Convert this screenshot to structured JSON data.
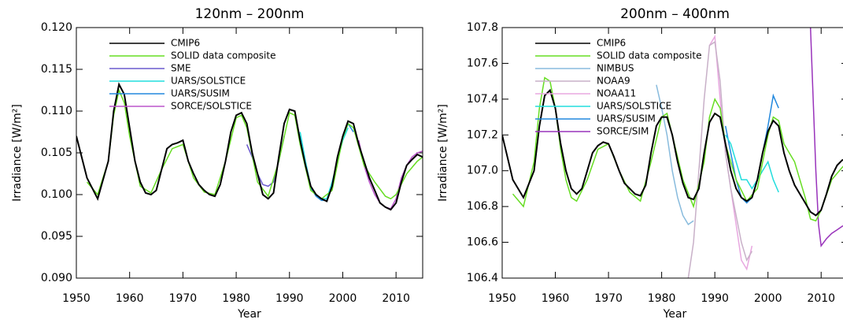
{
  "chart_data": [
    {
      "type": "line",
      "title": "120nm – 200nm",
      "xlabel": "Year",
      "ylabel": "Irradiance [W/m²]",
      "xlim": [
        1950,
        2015
      ],
      "ylim": [
        0.09,
        0.12
      ],
      "xticks": [
        1950,
        1960,
        1970,
        1980,
        1990,
        2000,
        2010
      ],
      "yticks": [
        {
          "value": 0.09,
          "label": "0.090"
        },
        0.095,
        {
          "value": 0.1,
          "label": "0.100"
        },
        0.105,
        {
          "value": 0.11,
          "label": "0.110"
        },
        0.115,
        {
          "value": 0.12,
          "label": "0.120"
        }
      ],
      "series": [
        {
          "name": "CMIP6",
          "color": "#000000",
          "x": [
            1950,
            1952,
            1954,
            1956,
            1957,
            1958,
            1959,
            1960,
            1961,
            1962,
            1963,
            1964,
            1965,
            1966,
            1967,
            1968,
            1969,
            1970,
            1971,
            1972,
            1973,
            1974,
            1975,
            1976,
            1977,
            1978,
            1979,
            1980,
            1981,
            1982,
            1983,
            1984,
            1985,
            1986,
            1987,
            1988,
            1989,
            1990,
            1991,
            1992,
            1993,
            1994,
            1995,
            1996,
            1997,
            1998,
            1999,
            2000,
            2001,
            2002,
            2003,
            2004,
            2005,
            2006,
            2007,
            2008,
            2009,
            2010,
            2011,
            2012,
            2013,
            2014,
            2015
          ],
          "values": [
            0.107,
            0.102,
            0.0995,
            0.104,
            0.11,
            0.1132,
            0.112,
            0.108,
            0.104,
            0.1015,
            0.1002,
            0.1,
            0.1005,
            0.103,
            0.1055,
            0.106,
            0.1062,
            0.1065,
            0.104,
            0.1025,
            0.1012,
            0.1005,
            0.1,
            0.0998,
            0.1012,
            0.104,
            0.1075,
            0.1095,
            0.1098,
            0.1085,
            0.105,
            0.1025,
            0.1,
            0.0995,
            0.1002,
            0.1045,
            0.1085,
            0.1102,
            0.11,
            0.1065,
            0.1035,
            0.101,
            0.1,
            0.0995,
            0.0992,
            0.101,
            0.1045,
            0.107,
            0.1088,
            0.1085,
            0.106,
            0.104,
            0.102,
            0.1005,
            0.099,
            0.0985,
            0.0982,
            0.099,
            0.1015,
            0.1035,
            0.1042,
            0.1048,
            0.1045
          ]
        },
        {
          "name": "SOLID data composite",
          "color": "#66dd22",
          "x": [
            1952,
            1954,
            1956,
            1957,
            1958,
            1959,
            1960,
            1962,
            1964,
            1966,
            1968,
            1970,
            1972,
            1974,
            1976,
            1978,
            1980,
            1981,
            1982,
            1984,
            1986,
            1988,
            1990,
            1991,
            1992,
            1994,
            1996,
            1998,
            2000,
            2001,
            2002,
            2004,
            2006,
            2008,
            2009,
            2010,
            2012,
            2014,
            2015
          ],
          "values": [
            0.1015,
            0.1,
            0.104,
            0.1095,
            0.1125,
            0.111,
            0.107,
            0.101,
            0.1002,
            0.103,
            0.1055,
            0.106,
            0.102,
            0.1003,
            0.1,
            0.104,
            0.1092,
            0.1095,
            0.108,
            0.1015,
            0.0998,
            0.104,
            0.1098,
            0.1095,
            0.106,
            0.1005,
            0.0995,
            0.1005,
            0.1068,
            0.1085,
            0.108,
            0.1035,
            0.1015,
            0.0998,
            0.0995,
            0.1,
            0.1025,
            0.104,
            0.1045
          ]
        },
        {
          "name": "SME",
          "color": "#6a5acd",
          "x": [
            1982,
            1983,
            1984,
            1985,
            1986,
            1987,
            1988,
            1989
          ],
          "values": [
            0.106,
            0.1045,
            0.1025,
            0.1012,
            0.101,
            0.1015,
            0.104,
            0.107
          ]
        },
        {
          "name": "UARS/SOLSTICE",
          "color": "#22dddd",
          "x": [
            1992,
            1993,
            1994,
            1995,
            1996,
            1997,
            1998,
            1999,
            2000,
            2001
          ],
          "values": [
            0.1075,
            0.104,
            0.101,
            0.1,
            0.0995,
            0.0995,
            0.1015,
            0.104,
            0.1065,
            0.108
          ]
        },
        {
          "name": "UARS/SUSIM",
          "color": "#2288dd",
          "x": [
            1992,
            1993,
            1994,
            1995,
            1996,
            1997,
            1998,
            1999,
            2000,
            2001,
            2002
          ],
          "values": [
            0.107,
            0.1035,
            0.1008,
            0.0998,
            0.0993,
            0.0993,
            0.101,
            0.104,
            0.1068,
            0.1085,
            0.1075
          ]
        },
        {
          "name": "SORCE/SOLSTICE",
          "color": "#bb55cc",
          "x": [
            2003,
            2004,
            2005,
            2006,
            2007,
            2008,
            2009,
            2010,
            2011,
            2012,
            2013,
            2014,
            2015
          ],
          "values": [
            0.1065,
            0.1035,
            0.1015,
            0.1,
            0.099,
            0.0985,
            0.0983,
            0.0995,
            0.102,
            0.1035,
            0.1045,
            0.105,
            0.1052
          ]
        }
      ]
    },
    {
      "type": "line",
      "title": "200nm – 400nm",
      "xlabel": "Year",
      "ylabel": "Irradiance [W/m²]",
      "xlim": [
        1950,
        2015
      ],
      "ylim": [
        106.4,
        107.8
      ],
      "xticks": [
        1950,
        1960,
        1970,
        1980,
        1990,
        2000,
        2010
      ],
      "yticks": [
        106.4,
        106.6,
        106.8,
        {
          "value": 107.0,
          "label": "107.0"
        },
        107.2,
        107.4,
        107.6,
        107.8
      ],
      "series": [
        {
          "name": "CMIP6",
          "color": "#000000",
          "x": [
            1950,
            1952,
            1954,
            1956,
            1957,
            1958,
            1959,
            1960,
            1961,
            1962,
            1963,
            1964,
            1965,
            1966,
            1967,
            1968,
            1969,
            1970,
            1971,
            1972,
            1973,
            1974,
            1975,
            1976,
            1977,
            1978,
            1979,
            1980,
            1981,
            1982,
            1983,
            1984,
            1985,
            1986,
            1987,
            1988,
            1989,
            1990,
            1991,
            1992,
            1993,
            1994,
            1995,
            1996,
            1997,
            1998,
            1999,
            2000,
            2001,
            2002,
            2003,
            2004,
            2005,
            2006,
            2007,
            2008,
            2009,
            2010,
            2011,
            2012,
            2013,
            2014,
            2015
          ],
          "values": [
            107.2,
            106.95,
            106.85,
            107.0,
            107.25,
            107.42,
            107.45,
            107.35,
            107.15,
            107.0,
            106.9,
            106.87,
            106.9,
            107.0,
            107.1,
            107.14,
            107.16,
            107.15,
            107.08,
            107.0,
            106.93,
            106.9,
            106.87,
            106.86,
            106.92,
            107.1,
            107.25,
            107.3,
            107.3,
            107.2,
            107.05,
            106.93,
            106.85,
            106.84,
            106.9,
            107.1,
            107.27,
            107.32,
            107.3,
            107.15,
            107.0,
            106.9,
            106.85,
            106.83,
            106.85,
            106.95,
            107.1,
            107.22,
            107.28,
            107.25,
            107.1,
            107.0,
            106.92,
            106.87,
            106.82,
            106.77,
            106.75,
            106.78,
            106.87,
            106.97,
            107.03,
            107.06,
            107.06
          ]
        },
        {
          "name": "SOLID data composite",
          "color": "#66dd22",
          "x": [
            1952,
            1954,
            1956,
            1957,
            1958,
            1959,
            1960,
            1961,
            1962,
            1963,
            1964,
            1966,
            1968,
            1970,
            1972,
            1974,
            1976,
            1978,
            1980,
            1981,
            1982,
            1984,
            1986,
            1988,
            1989,
            1990,
            1991,
            1992,
            1994,
            1996,
            1998,
            2000,
            2001,
            2002,
            2003,
            2004,
            2005,
            2006,
            2007,
            2008,
            2009,
            2010,
            2012,
            2014,
            2015
          ],
          "values": [
            106.87,
            106.8,
            107.05,
            107.35,
            107.52,
            107.5,
            107.35,
            107.12,
            106.95,
            106.85,
            106.83,
            106.95,
            107.12,
            107.15,
            107.0,
            106.88,
            106.83,
            107.05,
            107.3,
            107.32,
            107.2,
            106.95,
            106.8,
            107.05,
            107.3,
            107.4,
            107.35,
            107.15,
            106.95,
            106.83,
            106.9,
            107.2,
            107.3,
            107.28,
            107.15,
            107.1,
            107.05,
            106.95,
            106.85,
            106.73,
            106.72,
            106.78,
            106.95,
            107.02,
            107.05
          ]
        },
        {
          "name": "NIMBUS",
          "color": "#88bbdd",
          "x": [
            1979,
            1980,
            1981,
            1982,
            1983,
            1984,
            1985,
            1986
          ],
          "values": [
            107.48,
            107.35,
            107.2,
            107.0,
            106.85,
            106.75,
            106.7,
            106.72
          ]
        },
        {
          "name": "NOAA9",
          "color": "#c8b0c8",
          "x": [
            1985,
            1986,
            1987,
            1988,
            1989,
            1990,
            1991,
            1992,
            1993,
            1994,
            1995,
            1996,
            1997
          ],
          "values": [
            106.4,
            106.6,
            107.0,
            107.4,
            107.7,
            107.72,
            107.5,
            107.1,
            106.9,
            106.75,
            106.6,
            106.5,
            106.55
          ]
        },
        {
          "name": "NOAA11",
          "color": "#e8a8e0",
          "x": [
            1989,
            1990,
            1991,
            1992,
            1993,
            1994,
            1995,
            1996,
            1997
          ],
          "values": [
            107.7,
            107.75,
            107.4,
            107.1,
            106.9,
            106.7,
            106.5,
            106.45,
            106.58
          ]
        },
        {
          "name": "UARS/SOLSTICE",
          "color": "#22dddd",
          "x": [
            1992,
            1993,
            1994,
            1995,
            1996,
            1997,
            1998,
            1999,
            2000,
            2001,
            2002
          ],
          "values": [
            107.2,
            107.15,
            107.05,
            106.95,
            106.95,
            106.9,
            106.95,
            107.0,
            107.05,
            106.95,
            106.88
          ]
        },
        {
          "name": "UARS/SUSIM",
          "color": "#2288dd",
          "x": [
            1992,
            1993,
            1994,
            1995,
            1996,
            1997,
            1998,
            1999,
            2000,
            2001,
            2002
          ],
          "values": [
            107.25,
            107.1,
            106.95,
            106.85,
            106.82,
            106.85,
            106.95,
            107.1,
            107.25,
            107.42,
            107.35
          ]
        },
        {
          "name": "SORCE/SIM",
          "color": "#9933bb",
          "x": [
            2008,
            2008.5,
            2009,
            2009.5,
            2010,
            2011,
            2012,
            2013,
            2014,
            2015
          ],
          "values": [
            107.8,
            107.4,
            107.0,
            106.7,
            106.58,
            106.62,
            106.65,
            106.67,
            106.69,
            106.7
          ]
        }
      ]
    }
  ]
}
